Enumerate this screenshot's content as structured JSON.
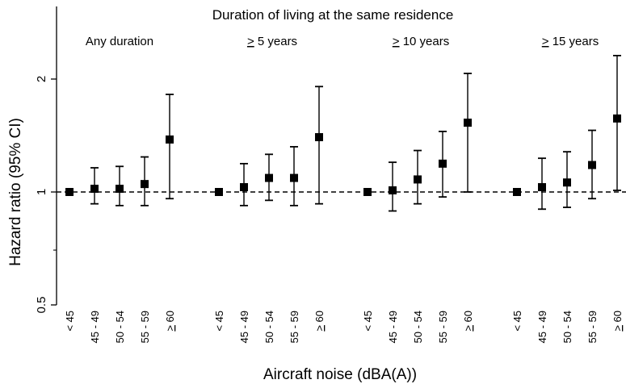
{
  "chart_data": {
    "type": "scatter",
    "title": "Duration of living at the same residence",
    "xlabel": "Aircraft noise (dBA(A))",
    "ylabel": "Hazard ratio (95% CI)",
    "y_scale": "log",
    "ylim": [
      0.5,
      2.5
    ],
    "y_ticks": [
      {
        "value": 0.5,
        "label": "0.5"
      },
      {
        "value": 1,
        "label": "1"
      },
      {
        "value": 2,
        "label": "2"
      }
    ],
    "y_minor_ticks": [
      0.7
    ],
    "reference_line": 1,
    "panels": [
      {
        "label": "Any duration",
        "categories": [
          "< 45",
          "45 - 49",
          "50 - 54",
          "55 - 59",
          "≥ 60"
        ],
        "values": [
          1.0,
          1.02,
          1.02,
          1.05,
          1.38
        ],
        "ci_low": [
          1.0,
          0.93,
          0.92,
          0.92,
          0.96
        ],
        "ci_high": [
          1.0,
          1.16,
          1.17,
          1.24,
          1.82
        ]
      },
      {
        "label": "≥ 5 years",
        "categories": [
          "< 45",
          "45 - 49",
          "50 - 54",
          "55 - 59",
          "≥ 60"
        ],
        "values": [
          1.0,
          1.03,
          1.09,
          1.09,
          1.4
        ],
        "ci_low": [
          1.0,
          0.92,
          0.95,
          0.92,
          0.93
        ],
        "ci_high": [
          1.0,
          1.19,
          1.26,
          1.32,
          1.91
        ]
      },
      {
        "label": "≥ 10 years",
        "categories": [
          "< 45",
          "45 - 49",
          "50 - 54",
          "55 - 59",
          "≥ 60"
        ],
        "values": [
          1.0,
          1.01,
          1.08,
          1.19,
          1.53
        ],
        "ci_low": [
          1.0,
          0.89,
          0.93,
          0.97,
          1.0
        ],
        "ci_high": [
          1.0,
          1.2,
          1.29,
          1.45,
          2.07
        ]
      },
      {
        "label": "≥ 15 years",
        "categories": [
          "< 45",
          "45 - 49",
          "50 - 54",
          "55 - 59",
          "≥ 60"
        ],
        "values": [
          1.0,
          1.03,
          1.06,
          1.18,
          1.57
        ],
        "ci_low": [
          1.0,
          0.9,
          0.91,
          0.96,
          1.01
        ],
        "ci_high": [
          1.0,
          1.23,
          1.28,
          1.46,
          2.31
        ]
      }
    ]
  }
}
